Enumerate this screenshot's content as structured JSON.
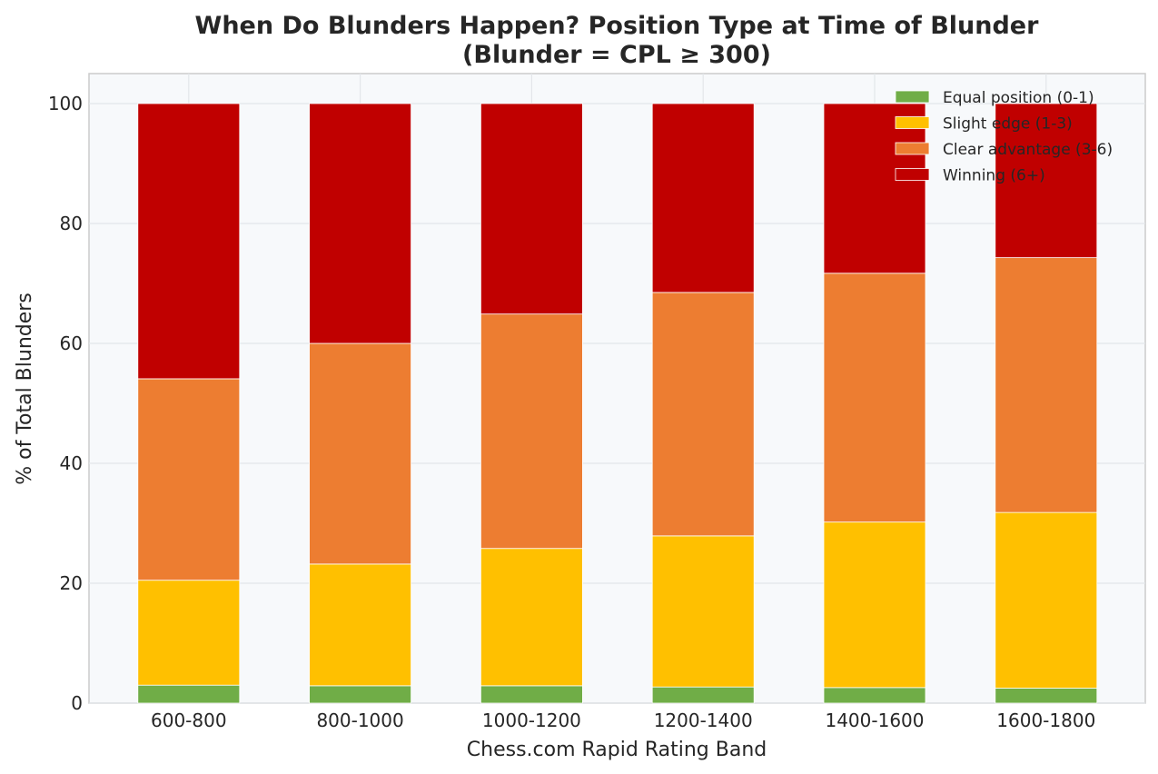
{
  "chart_data": {
    "type": "bar",
    "stacked": true,
    "title": "When Do Blunders Happen? Position Type at Time of Blunder",
    "subtitle": "(Blunder = CPL ≥ 300)",
    "xlabel": "Chess.com Rapid Rating Band",
    "ylabel": "% of Total Blunders",
    "ylim": [
      0,
      105
    ],
    "yticks": [
      "0",
      "20",
      "40",
      "60",
      "80",
      "100"
    ],
    "grid": true,
    "legend_position": "top-right",
    "categories": [
      "600-800",
      "800-1000",
      "1000-1200",
      "1200-1400",
      "1400-1600",
      "1600-1800"
    ],
    "series": [
      {
        "name": "Equal position (0-1)",
        "color": "#70ad47",
        "values": [
          3.0,
          2.9,
          2.9,
          2.7,
          2.6,
          2.5
        ]
      },
      {
        "name": "Slight edge (1-3)",
        "color": "#ffc000",
        "values": [
          17.5,
          20.3,
          22.9,
          25.2,
          27.6,
          29.3
        ]
      },
      {
        "name": "Clear advantage (3-6)",
        "color": "#ed7d31",
        "values": [
          33.6,
          36.8,
          39.1,
          40.6,
          41.5,
          42.5
        ]
      },
      {
        "name": "Winning (6+)",
        "color": "#c00000",
        "values": [
          45.9,
          40.0,
          35.1,
          31.5,
          28.3,
          25.7
        ]
      }
    ]
  }
}
